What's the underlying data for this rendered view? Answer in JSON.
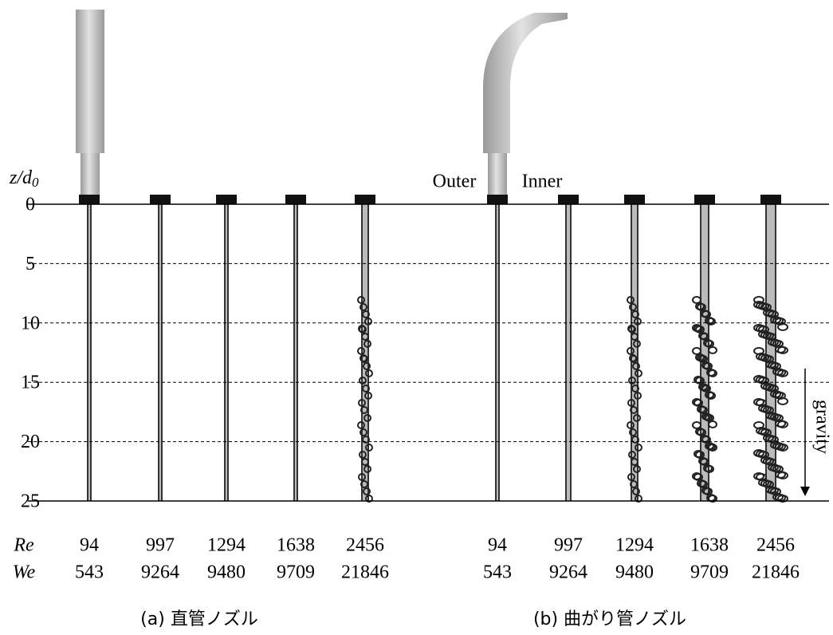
{
  "axis_label": {
    "text": "z/d",
    "subscript": "0"
  },
  "yticks": [
    0,
    5,
    10,
    15,
    20,
    25
  ],
  "row_labels": [
    "Re",
    "We"
  ],
  "panels": [
    {
      "caption": "(a) 直管ノズル",
      "Re": [
        94,
        997,
        1294,
        1638,
        2456
      ],
      "We": [
        543,
        9264,
        9480,
        9709,
        21846
      ]
    },
    {
      "caption": "(b) 曲がり管ノズル",
      "Re": [
        94,
        997,
        1294,
        1638,
        2456
      ],
      "We": [
        543,
        9264,
        9480,
        9709,
        21846
      ],
      "labels": [
        "Outer",
        "Inner"
      ]
    }
  ],
  "gravity": "gravity"
}
